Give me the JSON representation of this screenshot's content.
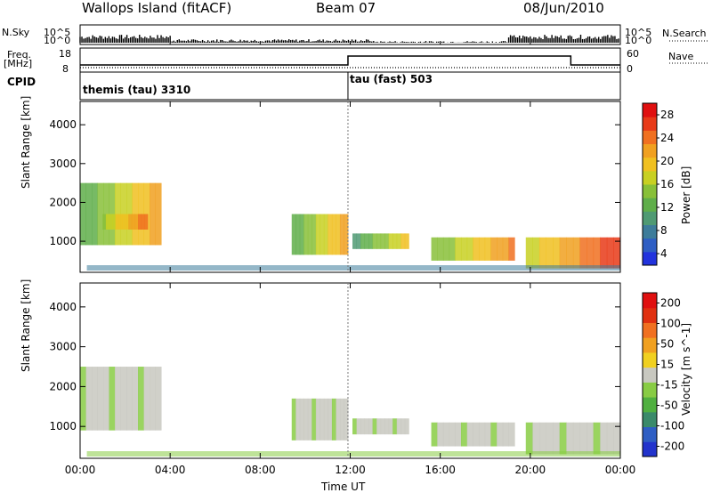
{
  "header": {
    "station": "Wallops Island (fitACF)",
    "beam": "Beam 07",
    "date": "08/Jun/2010"
  },
  "top_panels": {
    "nsky_label": "N.Sky",
    "nsky_ticks": [
      "10^5",
      "10^0"
    ],
    "nsearch_label": "N.Search",
    "nsearch_ticks": [
      "10^5",
      "10^0"
    ],
    "freq_label": "Freq.",
    "freq_unit": "[MHz]",
    "freq_ticks": [
      "18",
      "8"
    ],
    "nave_label": "Nave",
    "nave_ticks": [
      "60",
      "0"
    ],
    "cpid_label": "CPID",
    "cpid_modes": [
      "themis (tau) 3310",
      "tau (fast) 503"
    ]
  },
  "colors": {
    "frame": "#000000",
    "background": "#ffffff",
    "gs_gray": "#c8c8c0"
  },
  "chart_data": [
    {
      "type": "heatmap",
      "ylabel": "Slant Range [km]",
      "y_ticks": [
        "1000",
        "2000",
        "3000",
        "4000"
      ],
      "ylim": [
        200,
        4600
      ],
      "colorbar_label": "Power [dB]",
      "colorbar_ticks": [
        "28",
        "24",
        "20",
        "16",
        "12",
        "8",
        "4"
      ],
      "colorbar_colors": [
        "#2233dd",
        "#2e5ec4",
        "#3d7c9a",
        "#4f9a73",
        "#5fae4a",
        "#88c038",
        "#c8d022",
        "#f0c020",
        "#f0a020",
        "#f07020",
        "#e83a18",
        "#e01010"
      ],
      "patches": [
        {
          "t": 0.0,
          "t2": 3.6,
          "r": 900,
          "r2": 2500,
          "level": 0.55
        },
        {
          "t": 1.0,
          "t2": 3.0,
          "r": 1300,
          "r2": 1700,
          "level": 0.75
        },
        {
          "t": 9.4,
          "t2": 11.9,
          "r": 650,
          "r2": 1700,
          "level": 0.55
        },
        {
          "t": 12.1,
          "t2": 14.6,
          "r": 800,
          "r2": 1200,
          "level": 0.45
        },
        {
          "t": 15.6,
          "t2": 19.3,
          "r": 500,
          "r2": 1100,
          "level": 0.65
        },
        {
          "t": 19.8,
          "t2": 24.0,
          "r": 300,
          "r2": 1100,
          "level": 0.85
        }
      ]
    },
    {
      "type": "heatmap",
      "ylabel": "Slant Range [km]",
      "y_ticks": [
        "1000",
        "2000",
        "3000",
        "4000"
      ],
      "ylim": [
        200,
        4600
      ],
      "colorbar_label": "Velocity [m s^-1]",
      "colorbar_ticks": [
        "200",
        "100",
        "50",
        "15",
        "-15",
        "-50",
        "-100",
        "-200"
      ],
      "colorbar_colors": [
        "#2233cc",
        "#2e5ec4",
        "#3a8a6a",
        "#50b040",
        "#88cc44",
        "#c8c8c0",
        "#f0d020",
        "#f0a020",
        "#f07020",
        "#e03010",
        "#e01010"
      ],
      "patches": [
        {
          "t": 0.0,
          "t2": 3.6,
          "r": 900,
          "r2": 2500,
          "level": 0.5
        },
        {
          "t": 9.4,
          "t2": 11.9,
          "r": 650,
          "r2": 1700,
          "level": 0.5
        },
        {
          "t": 12.1,
          "t2": 14.6,
          "r": 800,
          "r2": 1200,
          "level": 0.5
        },
        {
          "t": 15.6,
          "t2": 19.3,
          "r": 500,
          "r2": 1100,
          "level": 0.5
        },
        {
          "t": 19.8,
          "t2": 24.0,
          "r": 300,
          "r2": 1100,
          "level": 0.5
        }
      ]
    }
  ],
  "x_axis": {
    "label": "Time UT",
    "ticks": [
      "00:00",
      "04:00",
      "08:00",
      "12:00",
      "16:00",
      "20:00",
      "00:00"
    ]
  }
}
